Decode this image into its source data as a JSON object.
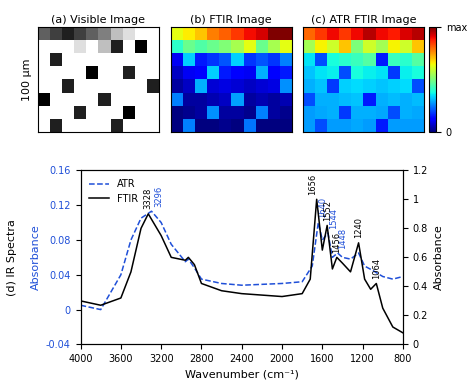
{
  "chart_data": [
    {
      "type": "image",
      "title": "(a) Visible Image",
      "ylabel": "100 μm",
      "cells": [
        [
          0.55,
          0.5,
          0.45,
          0.5,
          0.55,
          0.6,
          0.7,
          0.75,
          0.8,
          0.8
        ],
        [
          0.8,
          0.8,
          0.8,
          0.75,
          0.8,
          0.7,
          0.45,
          0.8,
          0.4,
          0.8
        ],
        [
          0.8,
          0.45,
          0.8,
          0.8,
          0.8,
          0.8,
          0.8,
          0.8,
          0.8,
          0.8
        ],
        [
          0.8,
          0.8,
          0.8,
          0.8,
          0.4,
          0.8,
          0.8,
          0.45,
          0.8,
          0.8
        ],
        [
          0.8,
          0.8,
          0.45,
          0.8,
          0.8,
          0.8,
          0.8,
          0.8,
          0.8,
          0.45
        ],
        [
          0.4,
          0.8,
          0.8,
          0.8,
          0.8,
          0.45,
          0.8,
          0.8,
          0.8,
          0.8
        ],
        [
          0.8,
          0.8,
          0.8,
          0.45,
          0.8,
          0.8,
          0.8,
          0.4,
          0.8,
          0.8
        ],
        [
          0.8,
          0.45,
          0.8,
          0.8,
          0.8,
          0.8,
          0.45,
          0.8,
          0.8,
          0.8
        ]
      ]
    },
    {
      "type": "heatmap",
      "title": "(b) FTIR Image",
      "cells": [
        [
          0.7,
          0.72,
          0.75,
          0.8,
          0.82,
          0.85,
          0.88,
          0.9,
          0.95,
          0.95
        ],
        [
          0.55,
          0.6,
          0.58,
          0.6,
          0.62,
          0.65,
          0.7,
          0.6,
          0.65,
          0.7
        ],
        [
          0.35,
          0.5,
          0.38,
          0.4,
          0.42,
          0.5,
          0.4,
          0.42,
          0.4,
          0.45
        ],
        [
          0.32,
          0.35,
          0.36,
          0.5,
          0.38,
          0.36,
          0.35,
          0.48,
          0.36,
          0.38
        ],
        [
          0.3,
          0.32,
          0.48,
          0.33,
          0.34,
          0.33,
          0.32,
          0.33,
          0.34,
          0.46
        ],
        [
          0.45,
          0.3,
          0.3,
          0.31,
          0.32,
          0.47,
          0.3,
          0.31,
          0.3,
          0.31
        ],
        [
          0.28,
          0.29,
          0.3,
          0.46,
          0.3,
          0.3,
          0.29,
          0.45,
          0.3,
          0.29
        ],
        [
          0.28,
          0.45,
          0.28,
          0.28,
          0.29,
          0.28,
          0.44,
          0.28,
          0.28,
          0.28
        ]
      ]
    },
    {
      "type": "heatmap",
      "title": "(c) ATR FTIR Image",
      "colorbar_range": [
        0,
        1
      ],
      "colorbar_ticks": [
        0,
        {
          "value": 1,
          "label": "max"
        }
      ],
      "cells": [
        [
          0.8,
          0.85,
          0.9,
          0.85,
          0.9,
          0.95,
          0.9,
          0.88,
          0.92,
          0.95
        ],
        [
          0.55,
          0.65,
          0.6,
          0.7,
          0.5,
          0.6,
          0.55,
          0.65,
          0.6,
          0.7
        ],
        [
          0.35,
          0.2,
          0.38,
          0.4,
          0.42,
          0.45,
          0.15,
          0.42,
          0.4,
          0.45
        ],
        [
          0.32,
          0.35,
          0.36,
          0.2,
          0.38,
          0.36,
          0.35,
          0.18,
          0.36,
          0.38
        ],
        [
          0.3,
          0.32,
          0.18,
          0.33,
          0.34,
          0.33,
          0.32,
          0.33,
          0.34,
          0.2
        ],
        [
          0.2,
          0.3,
          0.3,
          0.31,
          0.32,
          0.15,
          0.3,
          0.31,
          0.3,
          0.31
        ],
        [
          0.28,
          0.29,
          0.3,
          0.18,
          0.3,
          0.3,
          0.29,
          0.2,
          0.3,
          0.29
        ],
        [
          0.28,
          0.2,
          0.28,
          0.28,
          0.29,
          0.28,
          0.15,
          0.28,
          0.28,
          0.28
        ]
      ]
    },
    {
      "type": "line",
      "title": "(d) IR Spectra",
      "xlabel": "Wavenumber (cm⁻¹)",
      "ylabel": "Absorbance",
      "y2label": "Absorbance",
      "xlim": [
        4000,
        800
      ],
      "xticks": [
        4000,
        3600,
        3200,
        2800,
        2400,
        2000,
        1600,
        1200,
        800
      ],
      "ylim": [
        -0.04,
        0.16
      ],
      "yticks": [
        -0.04,
        0,
        0.04,
        0.08,
        0.12,
        0.16
      ],
      "y2lim": [
        0,
        1.2
      ],
      "y2ticks": [
        0,
        0.2,
        0.4,
        0.6,
        0.8,
        1,
        1.2
      ],
      "legend": "upper left",
      "series": [
        {
          "name": "ATR",
          "color": "#1f4fd8",
          "line_style": "dashed",
          "x": [
            4000,
            3800,
            3600,
            3500,
            3400,
            3296,
            3200,
            3100,
            2960,
            2930,
            2870,
            2800,
            2600,
            2400,
            2000,
            1800,
            1700,
            1640,
            1600,
            1544,
            1500,
            1448,
            1400,
            1320,
            1240,
            1180,
            1100,
            1000,
            900,
            800
          ],
          "values": [
            0.005,
            0.0,
            0.04,
            0.08,
            0.105,
            0.113,
            0.1,
            0.075,
            0.055,
            0.058,
            0.048,
            0.035,
            0.03,
            0.028,
            0.03,
            0.032,
            0.05,
            0.1,
            0.08,
            0.088,
            0.06,
            0.065,
            0.06,
            0.058,
            0.065,
            0.05,
            0.045,
            0.038,
            0.035,
            0.038
          ]
        },
        {
          "name": "FTIR",
          "color": "#000000",
          "line_style": "solid",
          "axis": "y2",
          "x": [
            4000,
            3800,
            3600,
            3500,
            3400,
            3328,
            3200,
            3100,
            2960,
            2930,
            2870,
            2800,
            2600,
            2400,
            2000,
            1800,
            1720,
            1656,
            1600,
            1552,
            1500,
            1456,
            1400,
            1320,
            1240,
            1180,
            1120,
            1064,
            1000,
            900,
            800
          ],
          "values": [
            0.3,
            0.27,
            0.32,
            0.5,
            0.8,
            0.9,
            0.75,
            0.6,
            0.58,
            0.6,
            0.55,
            0.42,
            0.37,
            0.35,
            0.33,
            0.35,
            0.45,
            1.0,
            0.65,
            0.82,
            0.52,
            0.6,
            0.56,
            0.5,
            0.7,
            0.45,
            0.38,
            0.42,
            0.25,
            0.12,
            0.08
          ]
        }
      ],
      "annotations": [
        {
          "text": "3328",
          "x": 3328,
          "y": 0.93,
          "axis": "y2",
          "color": "#000000"
        },
        {
          "text": "3296",
          "x": 3220,
          "y": 0.118,
          "axis": "y",
          "color": "#1f4fd8"
        },
        {
          "text": "1656",
          "x": 1700,
          "y": 1.03,
          "axis": "y2",
          "color": "#000000"
        },
        {
          "text": "1640",
          "x": 1600,
          "y": 0.105,
          "axis": "y",
          "color": "#1f4fd8"
        },
        {
          "text": "1552",
          "x": 1552,
          "y": 0.85,
          "axis": "y2",
          "color": "#000000"
        },
        {
          "text": "1544",
          "x": 1490,
          "y": 0.092,
          "axis": "y",
          "color": "#1f4fd8"
        },
        {
          "text": "1456",
          "x": 1456,
          "y": 0.63,
          "axis": "y2",
          "color": "#000000"
        },
        {
          "text": "1448",
          "x": 1395,
          "y": 0.07,
          "axis": "y",
          "color": "#1f4fd8"
        },
        {
          "text": "1240",
          "x": 1240,
          "y": 0.73,
          "axis": "y2",
          "color": "#000000"
        },
        {
          "text": "1064",
          "x": 1064,
          "y": 0.45,
          "axis": "y2",
          "color": "#000000"
        }
      ]
    }
  ]
}
